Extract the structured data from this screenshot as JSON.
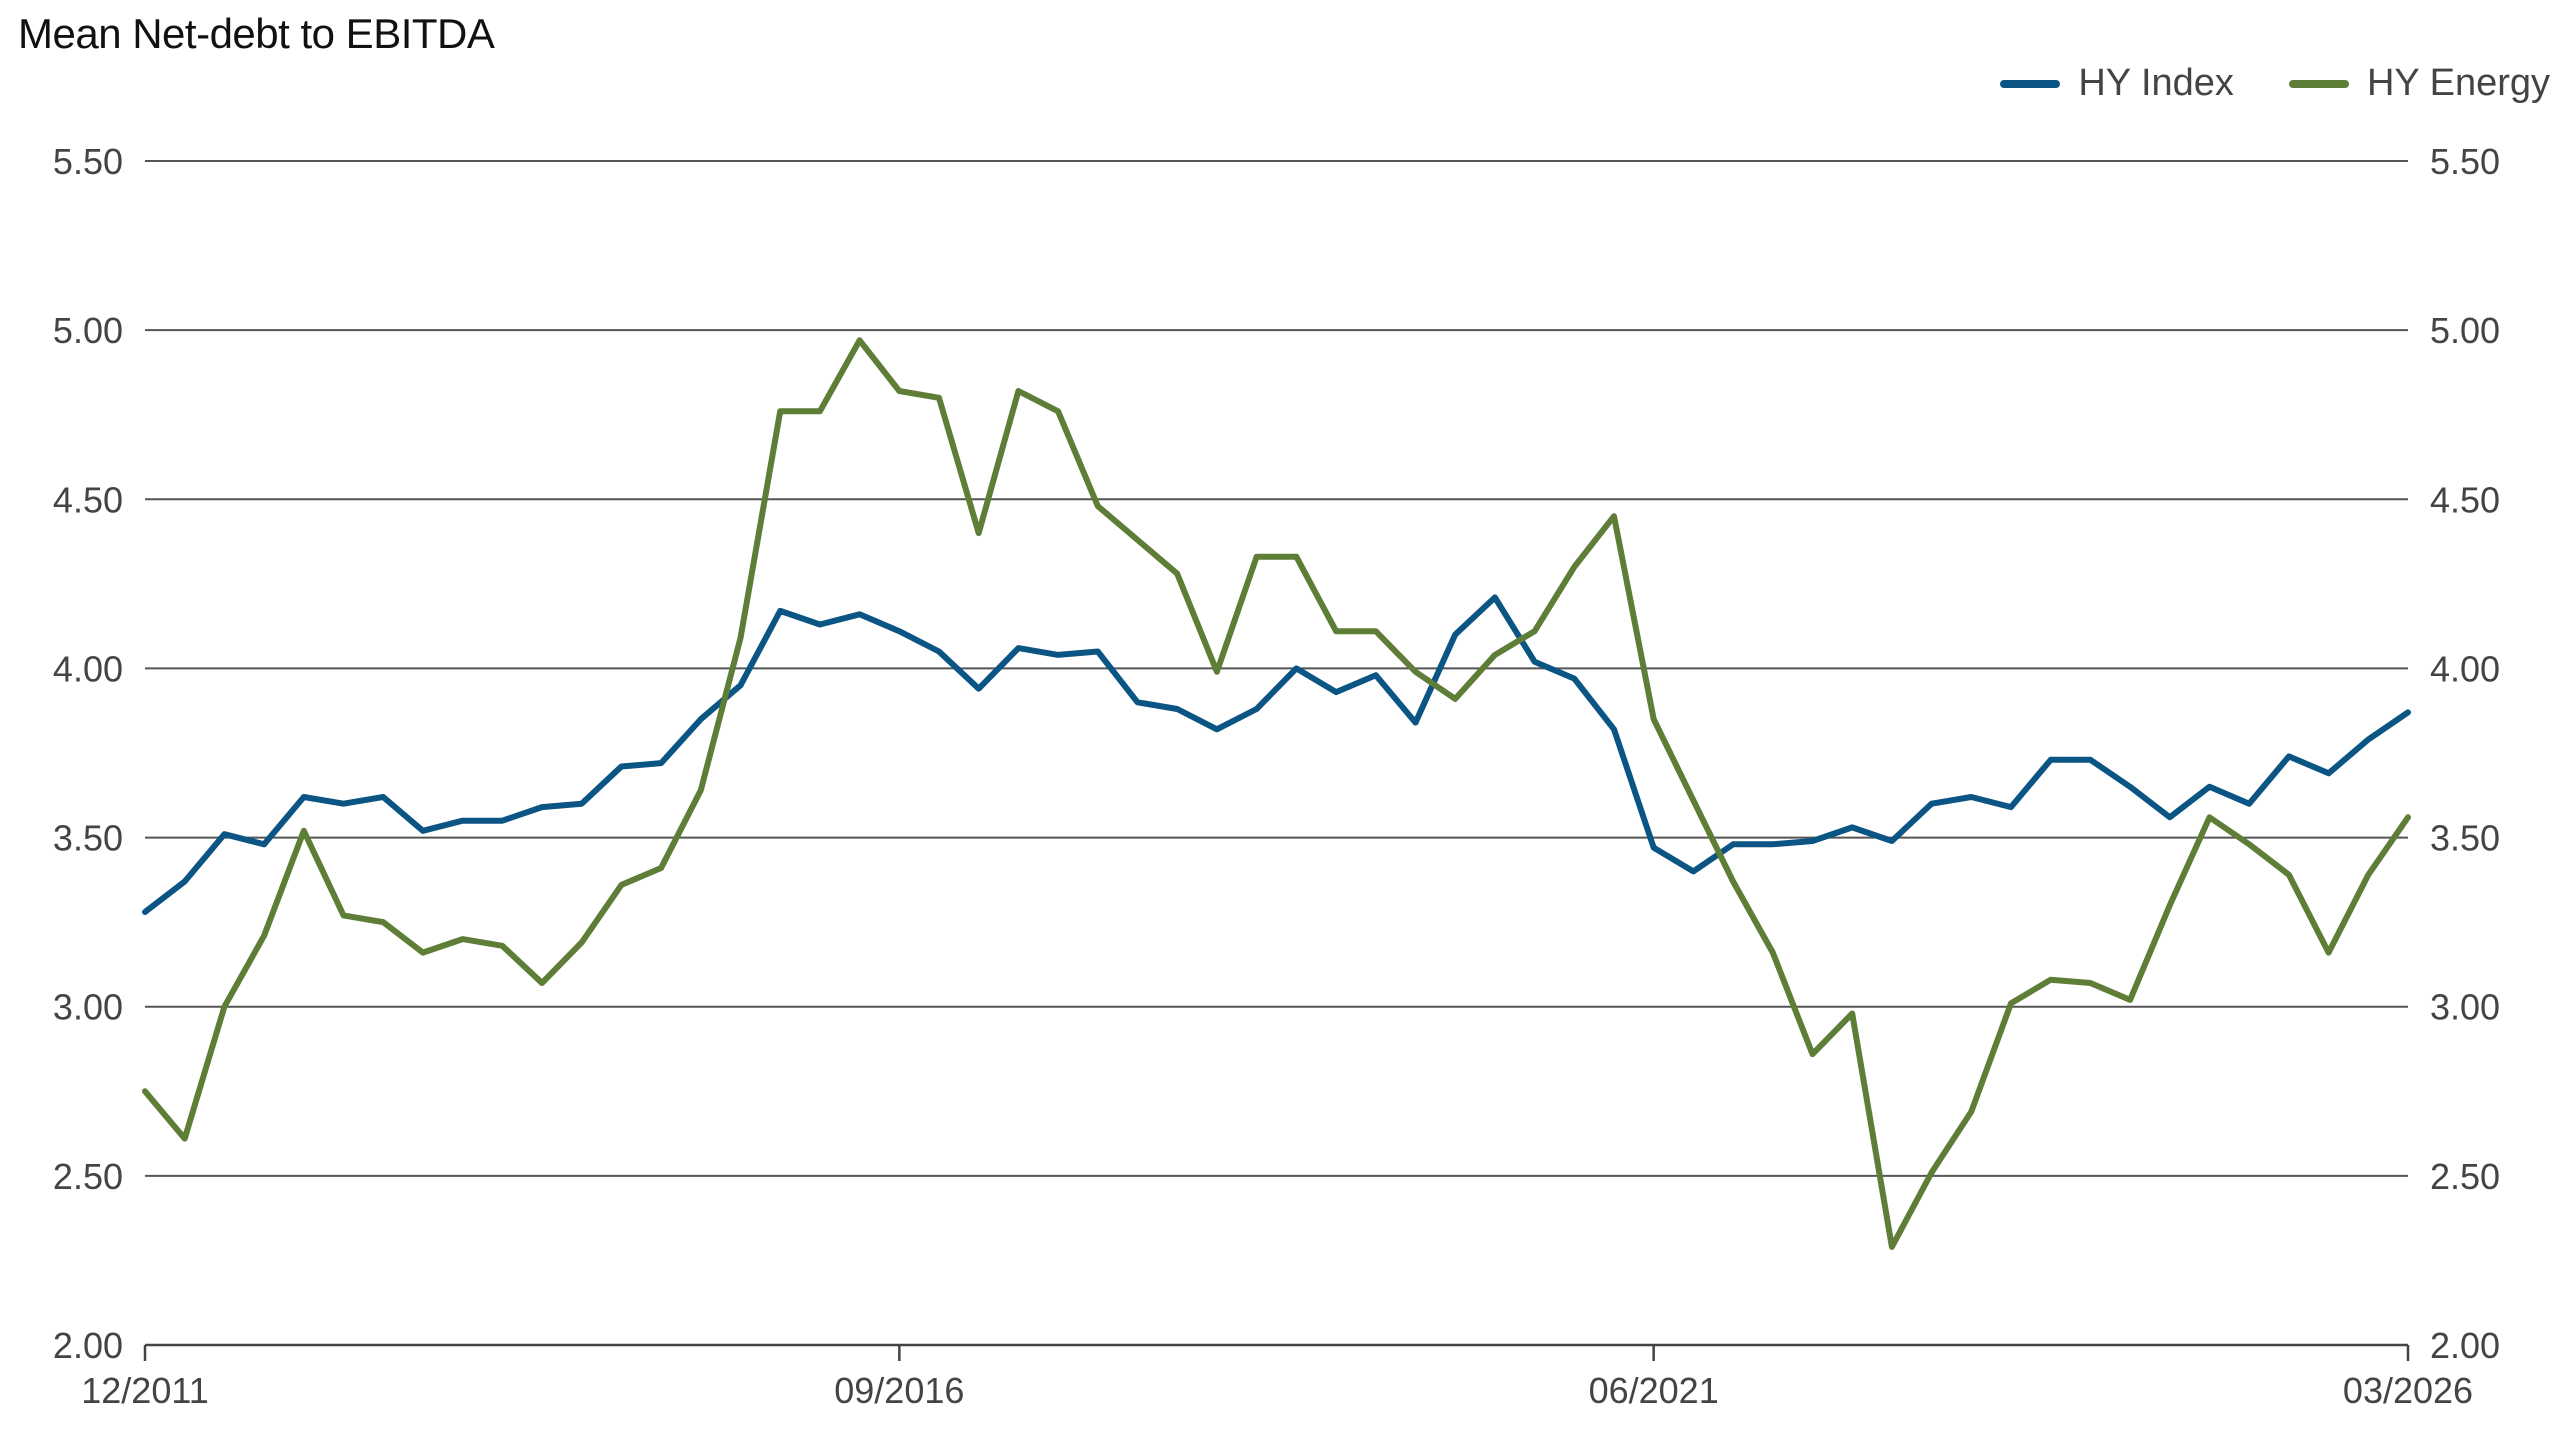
{
  "chart_data": {
    "type": "line",
    "title": "Mean Net-debt to EBITDA",
    "xlabel": "",
    "ylabel": "",
    "ylim": [
      2.0,
      5.5
    ],
    "y_ticks": [
      "5.50",
      "5.00",
      "4.50",
      "4.00",
      "3.50",
      "3.00",
      "2.50",
      "2.00"
    ],
    "y_tick_values": [
      5.5,
      5.0,
      4.5,
      4.0,
      3.5,
      3.0,
      2.5,
      2.0
    ],
    "x_ticks": [
      "12/2011",
      "09/2016",
      "06/2021",
      "03/2026"
    ],
    "x_start": "12/2011",
    "x_end": "03/2026",
    "x_step": "quarter",
    "legend_position": "top-right",
    "grid": "horizontal",
    "series": [
      {
        "name": "HY Index",
        "color": "#0b5584",
        "values": [
          3.28,
          3.37,
          3.51,
          3.48,
          3.62,
          3.6,
          3.62,
          3.52,
          3.55,
          3.55,
          3.59,
          3.6,
          3.71,
          3.72,
          3.85,
          3.95,
          4.17,
          4.13,
          4.16,
          4.11,
          4.05,
          3.94,
          4.06,
          4.04,
          4.05,
          3.9,
          3.88,
          3.82,
          3.88,
          4.0,
          3.93,
          3.98,
          3.84,
          4.1,
          4.21,
          4.02,
          3.97,
          3.82,
          3.47,
          3.4,
          3.48,
          3.48,
          3.49,
          3.53,
          3.49,
          3.6,
          3.62,
          3.59,
          3.73,
          3.73,
          3.65,
          3.56,
          3.65,
          3.6,
          3.74,
          3.69,
          3.79,
          3.87
        ]
      },
      {
        "name": "HY Energy",
        "color": "#5e7d37",
        "values": [
          2.75,
          2.61,
          3.0,
          3.21,
          3.52,
          3.27,
          3.25,
          3.16,
          3.2,
          3.18,
          3.07,
          3.19,
          3.36,
          3.41,
          3.64,
          4.09,
          4.76,
          4.76,
          4.97,
          4.82,
          4.8,
          4.4,
          4.82,
          4.76,
          4.48,
          4.38,
          4.28,
          3.99,
          4.33,
          4.33,
          4.11,
          4.11,
          3.99,
          3.91,
          4.04,
          4.11,
          4.3,
          4.45,
          3.85,
          3.61,
          3.37,
          3.16,
          2.86,
          2.98,
          2.29,
          2.51,
          2.69,
          3.01,
          3.08,
          3.07,
          3.02,
          3.3,
          3.56,
          3.48,
          3.39,
          3.16,
          3.39,
          3.56
        ]
      }
    ]
  }
}
